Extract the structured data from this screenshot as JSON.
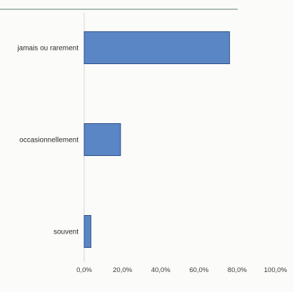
{
  "chart_data": {
    "type": "bar",
    "orientation": "horizontal",
    "categories": [
      "jamais ou rarement",
      "occasionnellement",
      "souvent"
    ],
    "values": [
      76.0,
      19.0,
      3.5
    ],
    "x_tick_labels": [
      "0,0%",
      "20,0%",
      "40,0%",
      "60,0%",
      "80,0%",
      "100,0%"
    ],
    "xlim": [
      0,
      100
    ],
    "grid": false,
    "legend": "none",
    "bar_color": "#5b86c5",
    "bar_edge_color": "#2e4f86",
    "top_rule_color": "#7d9a8c"
  }
}
